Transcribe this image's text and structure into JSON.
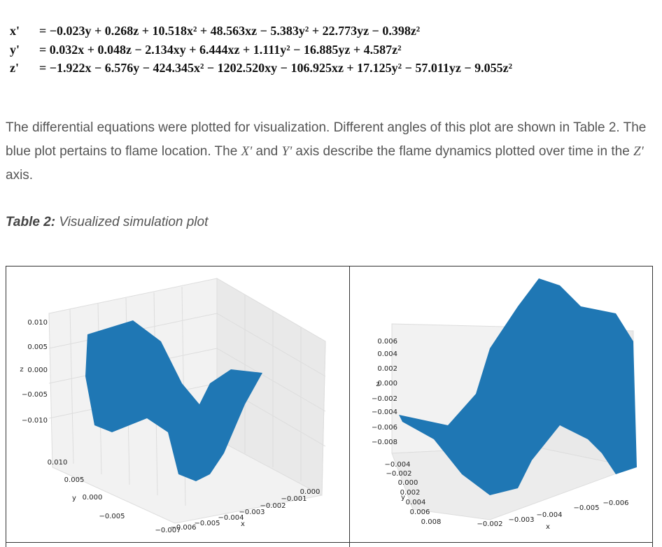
{
  "equations": [
    {
      "lhs": "x'",
      "rhs": "= −0.023y + 0.268z + 10.518x² + 48.563xz − 5.383y² + 22.773yz − 0.398z²"
    },
    {
      "lhs": "y'",
      "rhs": "= 0.032x + 0.048z − 2.134xy + 6.444xz + 1.111y² − 16.885yz + 4.587z²"
    },
    {
      "lhs": "z'",
      "rhs": "= −1.922x − 6.576y − 424.345x² − 1202.520xy − 106.925xz + 17.125y² − 57.011yz − 9.055z²"
    }
  ],
  "paragraph": [
    "The differential equations were plotted for visualization. Different angles of this plot are shown in Table 2. The blue plot pertains to flame location. The ",
    "X'",
    " and ",
    "Y'",
    " axis describe the flame dynamics plotted over time in the ",
    "Z'",
    " axis."
  ],
  "caption": {
    "label": "Table 2:",
    "text": "Visualized simulation plot"
  },
  "table": {
    "cells": [
      {
        "z_label": "z",
        "y_label": "y",
        "x_label": "x",
        "zticks": [
          "0.010",
          "0.005",
          "0.000",
          "−0.005",
          "−0.010"
        ],
        "yticks": [
          "0.010",
          "0.005",
          "0.000",
          "−0.005"
        ],
        "xticks": [
          "−0.007",
          "−0.006",
          "−0.005",
          "−0.004",
          "−0.003",
          "−0.002",
          "−0.001",
          "0.000"
        ]
      },
      {
        "z_label": "z",
        "y_label": "y",
        "x_label": "x",
        "zticks": [
          "0.006",
          "0.004",
          "0.002",
          "0.000",
          "−0.002",
          "−0.004",
          "−0.006",
          "−0.008"
        ],
        "yticks": [
          "−0.004",
          "−0.002",
          "0.000",
          "0.002",
          "0.004",
          "0.006",
          "0.008"
        ],
        "xticks": [
          "−0.002",
          "−0.003",
          "−0.004",
          "−0.005",
          "−0.006"
        ]
      }
    ]
  }
}
